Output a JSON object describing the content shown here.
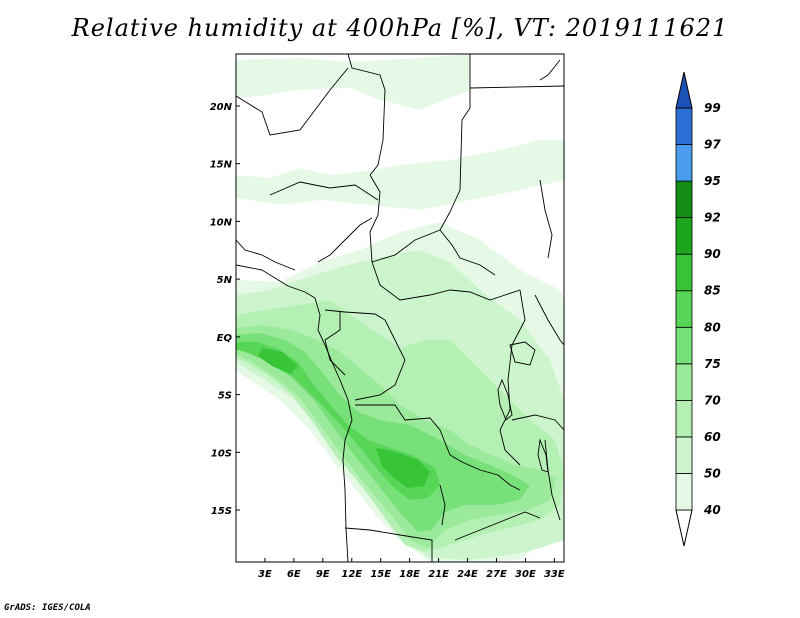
{
  "title": "Relative humidity at 400hPa [%], VT: 2019111621",
  "credit": "GrADS: IGES/COLA",
  "map": {
    "lat_range": [
      -19.5,
      24.5
    ],
    "lon_range": [
      0,
      34
    ],
    "lat_ticks": [
      {
        "value": 20,
        "label": "20N"
      },
      {
        "value": 15,
        "label": "15N"
      },
      {
        "value": 10,
        "label": "10N"
      },
      {
        "value": 5,
        "label": "5N"
      },
      {
        "value": 0,
        "label": "EQ"
      },
      {
        "value": -5,
        "label": "5S"
      },
      {
        "value": -10,
        "label": "10S"
      },
      {
        "value": -15,
        "label": "15S"
      }
    ],
    "lon_ticks": [
      {
        "value": 3,
        "label": "3E"
      },
      {
        "value": 6,
        "label": "6E"
      },
      {
        "value": 9,
        "label": "9E"
      },
      {
        "value": 12,
        "label": "12E"
      },
      {
        "value": 15,
        "label": "15E"
      },
      {
        "value": 18,
        "label": "18E"
      },
      {
        "value": 21,
        "label": "21E"
      },
      {
        "value": 24,
        "label": "24E"
      },
      {
        "value": 27,
        "label": "27E"
      },
      {
        "value": 30,
        "label": "30E"
      },
      {
        "value": 33,
        "label": "33E"
      }
    ]
  },
  "colorbar": {
    "levels": [
      "40",
      "50",
      "60",
      "70",
      "75",
      "80",
      "85",
      "90",
      "92",
      "95",
      "97",
      "99"
    ],
    "colors": [
      "#ffffff",
      "#e6f9e6",
      "#cdf5cd",
      "#b4f0b4",
      "#9bea9b",
      "#78e078",
      "#56d556",
      "#37c437",
      "#1ea51e",
      "#148c14",
      "#4a9cee",
      "#2a6fd6",
      "#1c52b8"
    ]
  },
  "humidity_colors": {
    "very_light": "#e6f9e6",
    "light": "#cdf5cd",
    "medium_light": "#b4f0b4",
    "medium": "#9bea9b",
    "medium_dark": "#78e078",
    "dark": "#56d556",
    "darkest": "#37c437"
  }
}
